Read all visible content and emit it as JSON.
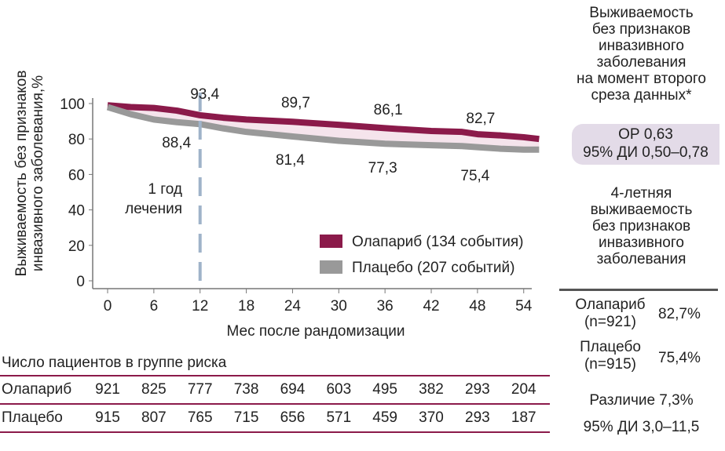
{
  "chart_data": {
    "type": "line",
    "xlabel": "Мес после рандомизации",
    "ylabel": "Выживаемость без признаков инвазивного заболевания,%",
    "xticks": [
      0,
      6,
      12,
      18,
      24,
      30,
      36,
      42,
      48,
      54
    ],
    "yticks": [
      0,
      20,
      40,
      60,
      80,
      100
    ],
    "xlim": [
      -1,
      59
    ],
    "ylim": [
      0,
      100
    ],
    "legend_position": "bottom-right",
    "series": [
      {
        "name": "Олапариб (134 события)",
        "color": "#8b1a4a",
        "x": [
          0,
          3,
          6,
          9,
          12,
          15,
          18,
          24,
          30,
          36,
          42,
          46,
          48,
          51,
          54,
          56
        ],
        "y": [
          99,
          98,
          97.5,
          96,
          93.4,
          92,
          91,
          89.7,
          88,
          86.1,
          84.5,
          84,
          82.7,
          82,
          81,
          80
        ]
      },
      {
        "name": "Плацебо (207 событий)",
        "color": "#999999",
        "x": [
          0,
          3,
          6,
          9,
          12,
          15,
          18,
          24,
          30,
          36,
          42,
          46,
          48,
          51,
          54,
          56
        ],
        "y": [
          98,
          94,
          91,
          89.5,
          88.4,
          86,
          84,
          81.4,
          79,
          77.3,
          76.5,
          76,
          75.4,
          74.5,
          74,
          74
        ]
      }
    ],
    "annotations": {
      "olaparib_labels": [
        {
          "x": 12,
          "text": "93,4"
        },
        {
          "x": 24,
          "text": "89,7"
        },
        {
          "x": 36,
          "text": "86,1"
        },
        {
          "x": 48,
          "text": "82,7"
        }
      ],
      "placebo_labels": [
        {
          "x": 12,
          "text": "88,4"
        },
        {
          "x": 24,
          "text": "81,4"
        },
        {
          "x": 36,
          "text": "77,3"
        },
        {
          "x": 48,
          "text": "75,4"
        }
      ],
      "vline_x": 12,
      "vline_label_1": "1 год",
      "vline_label_2": "лечения"
    }
  },
  "risk_table": {
    "title": "Число пациентов в группе риска",
    "rows": [
      {
        "label": "Олапариб",
        "values": [
          "921",
          "825",
          "777",
          "738",
          "694",
          "603",
          "495",
          "382",
          "293",
          "204"
        ]
      },
      {
        "label": "Плацебо",
        "values": [
          "915",
          "807",
          "765",
          "715",
          "656",
          "571",
          "459",
          "370",
          "293",
          "187"
        ]
      }
    ]
  },
  "summary": {
    "title_lines": [
      "Выживаемость",
      "без признаков",
      "инвазивного",
      "заболевания",
      "на момент второго",
      "среза данных*"
    ],
    "hr": "ОР 0,63",
    "hr_ci": "95% ДИ 0,50–0,78",
    "four_year_lines": [
      "4-летняя",
      "выживаемость",
      "без признаков",
      "инвазивного",
      "заболевания"
    ],
    "olaparib_label": "Олапариб",
    "olaparib_n": "(n=921)",
    "olaparib_value": "82,7%",
    "placebo_label": "Плацебо",
    "placebo_n": "(n=915)",
    "placebo_value": "75,4%",
    "difference": "Различие 7,3%",
    "difference_ci": "95% ДИ 3,0–11,5"
  },
  "colors": {
    "olaparib": "#8b1a4a",
    "placebo": "#999999",
    "band": "#f5e4ec",
    "vline": "#9fb3c9",
    "box": "#e3dbe8"
  }
}
